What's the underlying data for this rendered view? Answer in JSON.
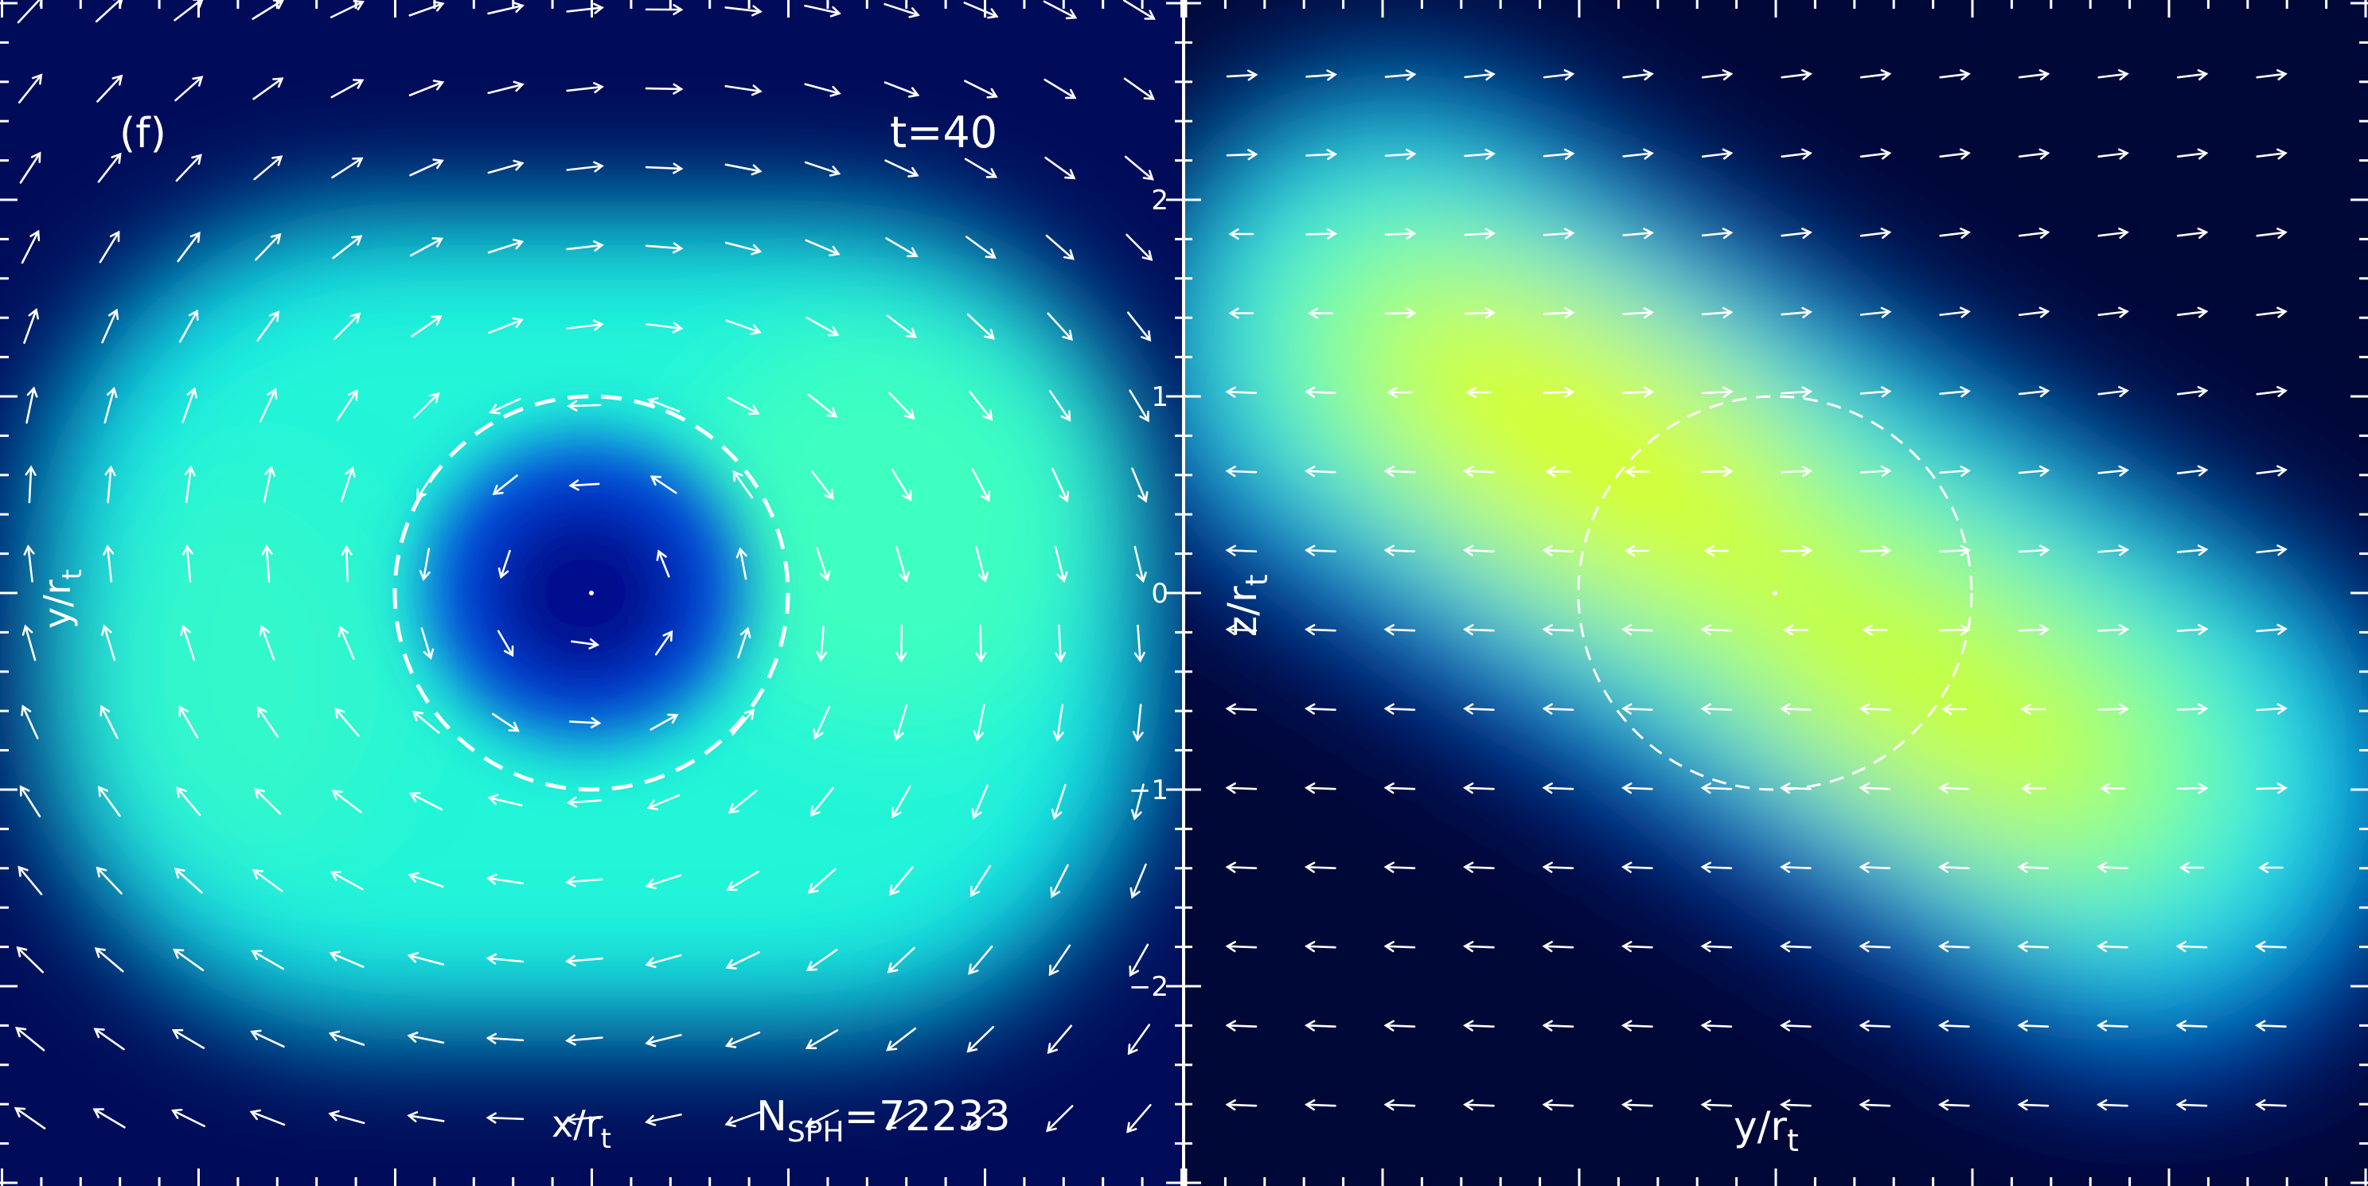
{
  "chart_data": [
    {
      "type": "heatmap",
      "panel_label": "(f)",
      "time_label": "t=40",
      "xlabel": "x/r",
      "xlabel_sub": "t",
      "ylabel": "y/r",
      "ylabel_sub": "t",
      "nsph_label_main": "N",
      "nsph_label_sub": "SPH",
      "nsph_label_value": "=72233",
      "xlim": [
        -3,
        3
      ],
      "ylim": [
        -3,
        3
      ],
      "circle": {
        "cx": 0,
        "cy": 0,
        "r": 1,
        "style": "dashed"
      },
      "vector_field": "rotating flow around a low-density core"
    },
    {
      "type": "heatmap",
      "xlabel": "y/r",
      "xlabel_sub": "t",
      "ylabel": "z/r",
      "ylabel_sub": "t",
      "xlim": [
        -3,
        3
      ],
      "ylim": [
        -3,
        3
      ],
      "yticks": [
        -2,
        -1,
        0,
        1,
        2
      ],
      "ytick_labels": [
        "−2",
        "−1",
        "0",
        "1",
        "2"
      ],
      "circle": {
        "cx": 0,
        "cy": 0,
        "r": 1,
        "style": "dashed"
      },
      "vector_field": "outflow to the right above and to the left below a tilted density band"
    }
  ],
  "colors": {
    "low": "#000c46",
    "mid_blue": "#0014d2",
    "cyan": "#00f0f0",
    "aqua": "#28ffc8",
    "high": "#e6ff1e"
  }
}
